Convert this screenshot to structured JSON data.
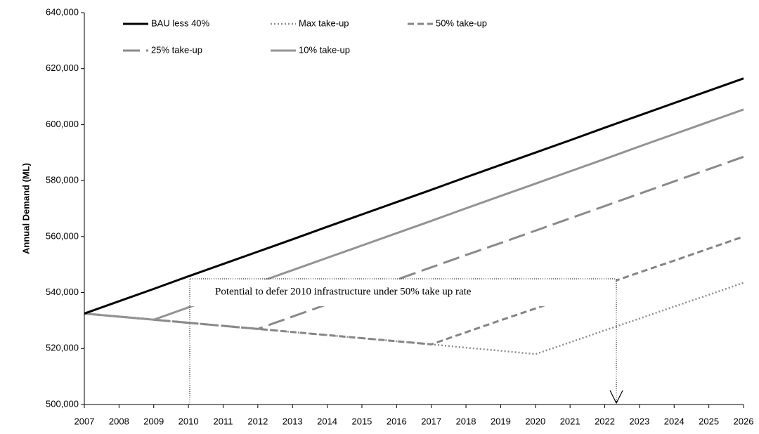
{
  "chart_data": {
    "type": "line",
    "y_label": "Annual Demand (ML)",
    "x": [
      2007,
      2008,
      2009,
      2010,
      2011,
      2012,
      2013,
      2014,
      2015,
      2016,
      2017,
      2018,
      2019,
      2020,
      2021,
      2022,
      2023,
      2024,
      2025,
      2026
    ],
    "xlim": [
      2007,
      2026
    ],
    "xticks": [
      2007,
      2008,
      2009,
      2010,
      2011,
      2012,
      2013,
      2014,
      2015,
      2016,
      2017,
      2018,
      2019,
      2020,
      2021,
      2022,
      2023,
      2024,
      2025,
      2026
    ],
    "ylim": [
      500000,
      640000
    ],
    "yticks": [
      {
        "value": 500000,
        "label": "500,000"
      },
      {
        "value": 520000,
        "label": "520,000"
      },
      {
        "value": 540000,
        "label": "540,000"
      },
      {
        "value": 560000,
        "label": "560,000"
      },
      {
        "value": 580000,
        "label": "580,000"
      },
      {
        "value": 600000,
        "label": "600,000"
      },
      {
        "value": 620000,
        "label": "620,000"
      },
      {
        "value": 640000,
        "label": "640,000"
      }
    ],
    "grid": false,
    "annotation": "Potential to defer 2010 infrastructure under 50% take up rate",
    "series": [
      {
        "name": "Max take-up",
        "color": "#8c8c8c",
        "dash": "dotted",
        "values": [
          532500,
          531400,
          530300,
          529200,
          528100,
          527000,
          525900,
          524800,
          523700,
          522600,
          521500,
          520300,
          519200,
          518000,
          522200,
          526500,
          530700,
          535000,
          539200,
          543500
        ]
      },
      {
        "name": "50% take-up",
        "color": "#858585",
        "dash": "short",
        "values": [
          532500,
          531400,
          530300,
          529200,
          528100,
          527000,
          525900,
          524800,
          523700,
          522600,
          521500,
          525800,
          530100,
          534300,
          538600,
          542900,
          547200,
          551400,
          555700,
          560000
        ]
      },
      {
        "name": "25% take-up",
        "color": "#8a8a8a",
        "dash": "long",
        "values": [
          532500,
          531400,
          530300,
          529200,
          528100,
          527000,
          531400,
          535800,
          540200,
          544600,
          549000,
          553400,
          557700,
          562100,
          566500,
          570900,
          575300,
          579700,
          584100,
          588500
        ]
      },
      {
        "name": "10% take-up",
        "color": "#939393",
        "dash": "solid",
        "values": [
          532500,
          531400,
          530300,
          534700,
          539100,
          543600,
          548000,
          552400,
          556800,
          561200,
          565600,
          570100,
          574500,
          578900,
          583300,
          587700,
          592200,
          596600,
          601000,
          605400
        ]
      },
      {
        "name": "BAU less 40%",
        "color": "#000000",
        "dash": "solid",
        "values": [
          532500,
          536900,
          541300,
          545800,
          550200,
          554600,
          559000,
          563500,
          567900,
          572300,
          576700,
          581200,
          585600,
          590000,
          594400,
          598900,
          603300,
          607700,
          612100,
          616500
        ]
      }
    ]
  }
}
